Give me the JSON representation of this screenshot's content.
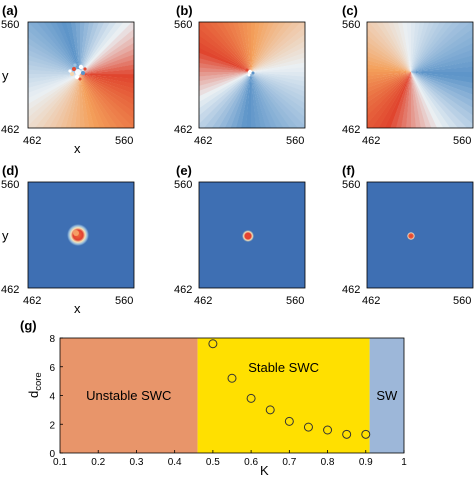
{
  "panels": [
    {
      "label": "(a)",
      "kind": "phase",
      "xlabel": "x",
      "ylabel": "y",
      "x_range": [
        462,
        560
      ],
      "y_range": [
        462,
        560
      ],
      "tick_labels": [
        "560",
        "462",
        "462",
        "560"
      ]
    },
    {
      "label": "(b)",
      "kind": "phase",
      "tick_labels": [
        "560",
        "462",
        "462",
        "560"
      ]
    },
    {
      "label": "(c)",
      "kind": "phase",
      "tick_labels": [
        "560",
        "462",
        "462",
        "560"
      ]
    },
    {
      "label": "(d)",
      "kind": "core",
      "xlabel": "x",
      "ylabel": "y",
      "tick_labels": [
        "560",
        "462",
        "462",
        "560"
      ]
    },
    {
      "label": "(e)",
      "kind": "core",
      "tick_labels": [
        "560",
        "462",
        "462",
        "560"
      ]
    },
    {
      "label": "(f)",
      "kind": "core",
      "tick_labels": [
        "560",
        "462",
        "462",
        "560"
      ]
    }
  ],
  "chart_data": {
    "type": "scatter",
    "panel_label": "(g)",
    "xlabel": "K",
    "ylabel": "d",
    "ylabel_sub": "core",
    "xlim": [
      0.1,
      1.0
    ],
    "ylim": [
      0,
      8
    ],
    "xticks": [
      "0.1",
      "0.2",
      "0.3",
      "0.4",
      "0.5",
      "0.6",
      "0.7",
      "0.8",
      "0.9",
      "1"
    ],
    "yticks": [
      "0",
      "2",
      "4",
      "6",
      "8"
    ],
    "regions": [
      {
        "label": "Unstable SWC",
        "from": 0.1,
        "to": 0.46,
        "color": "#E8956A"
      },
      {
        "label": "Stable SWC",
        "from": 0.46,
        "to": 0.91,
        "color": "#FFE000"
      },
      {
        "label": "SW",
        "from": 0.91,
        "to": 1.0,
        "color": "#9DB7D9"
      }
    ],
    "points": [
      {
        "x": 0.5,
        "y": 7.6
      },
      {
        "x": 0.55,
        "y": 5.2
      },
      {
        "x": 0.6,
        "y": 3.8
      },
      {
        "x": 0.65,
        "y": 3.0
      },
      {
        "x": 0.7,
        "y": 2.2
      },
      {
        "x": 0.75,
        "y": 1.8
      },
      {
        "x": 0.8,
        "y": 1.6
      },
      {
        "x": 0.85,
        "y": 1.3
      },
      {
        "x": 0.9,
        "y": 1.3
      }
    ]
  },
  "colors": {
    "phase_red": "#E0452E",
    "phase_orange": "#F4A05A",
    "phase_light": "#EAF0F4",
    "phase_blue": "#5B93C8",
    "core_background": "#3E6FB3"
  }
}
